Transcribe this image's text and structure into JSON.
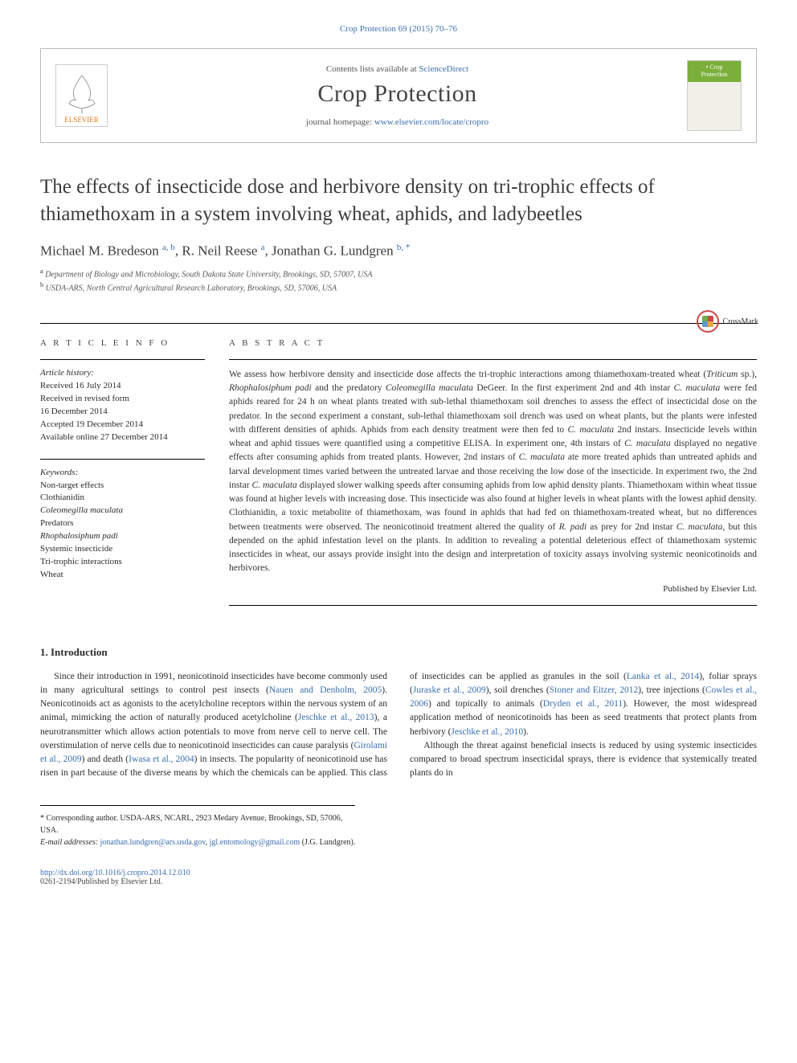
{
  "journal_ref": "Crop Protection 69 (2015) 70–76",
  "header": {
    "contents_prefix": "Contents lists available at ",
    "contents_link": "ScienceDirect",
    "journal_name": "Crop Protection",
    "homepage_prefix": "journal homepage: ",
    "homepage_link": "www.elsevier.com/locate/cropro",
    "publisher": "ELSEVIER",
    "cover_label": "Crop\nProtection"
  },
  "crossmark_label": "CrossMark",
  "title": "The effects of insecticide dose and herbivore density on tri-trophic effects of thiamethoxam in a system involving wheat, aphids, and ladybeetles",
  "authors_html": "Michael M. Bredeson <sup>a, b</sup>, R. Neil Reese <sup>a</sup>, Jonathan G. Lundgren <sup>b, *</sup>",
  "affiliations": [
    {
      "sup": "a",
      "text": "Department of Biology and Microbiology, South Dakota State University, Brookings, SD, 57007, USA"
    },
    {
      "sup": "b",
      "text": "USDA-ARS, North Central Agricultural Research Laboratory, Brookings, SD, 57006, USA"
    }
  ],
  "info": {
    "label": "A R T I C L E   I N F O",
    "history_heading": "Article history:",
    "history_lines": [
      "Received 16 July 2014",
      "Received in revised form",
      "16 December 2014",
      "Accepted 19 December 2014",
      "Available online 27 December 2014"
    ],
    "keywords_heading": "Keywords:",
    "keywords": [
      "Non-target effects",
      "Clothianidin",
      "Coleomegilla maculata",
      "Predators",
      "Rhophalosiphum padi",
      "Systemic insecticide",
      "Tri-trophic interactions",
      "Wheat"
    ],
    "keyword_italic_flags": [
      false,
      false,
      true,
      false,
      true,
      false,
      false,
      false
    ]
  },
  "abstract": {
    "label": "A B S T R A C T",
    "text": "We assess how herbivore density and insecticide dose affects the tri-trophic interactions among thiamethoxam-treated wheat (Triticum sp.), Rhophalosiphum padi and the predatory Coleomegilla maculata DeGeer. In the first experiment 2nd and 4th instar C. maculata were fed aphids reared for 24 h on wheat plants treated with sub-lethal thiamethoxam soil drenches to assess the effect of insecticidal dose on the predator. In the second experiment a constant, sub-lethal thiamethoxam soil drench was used on wheat plants, but the plants were infested with different densities of aphids. Aphids from each density treatment were then fed to C. maculata 2nd instars. Insecticide levels within wheat and aphid tissues were quantified using a competitive ELISA. In experiment one, 4th instars of C. maculata displayed no negative effects after consuming aphids from treated plants. However, 2nd instars of C. maculata ate more treated aphids than untreated aphids and larval development times varied between the untreated larvae and those receiving the low dose of the insecticide. In experiment two, the 2nd instar C. maculata displayed slower walking speeds after consuming aphids from low aphid density plants. Thiamethoxam within wheat tissue was found at higher levels with increasing dose. This insecticide was also found at higher levels in wheat plants with the lowest aphid density. Clothianidin, a toxic metabolite of thiamethoxam, was found in aphids that had fed on thiamethoxam-treated wheat, but no differences between treatments were observed. The neonicotinoid treatment altered the quality of R. padi as prey for 2nd instar C. maculata, but this depended on the aphid infestation level on the plants. In addition to revealing a potential deleterious effect of thiamethoxam systemic insecticides in wheat, our assays provide insight into the design and interpretation of toxicity assays involving systemic neonicotinoids and herbivores.",
    "publisher_line": "Published by Elsevier Ltd."
  },
  "intro": {
    "heading": "1. Introduction",
    "p1_a": "Since their introduction in 1991, neonicotinoid insecticides have become commonly used in many agricultural settings to control pest insects (",
    "p1_link1": "Nauen and Denholm, 2005",
    "p1_b": "). Neonicotinoids act as agonists to the acetylcholine receptors within the nervous system of an animal, mimicking the action of naturally produced acetylcholine (",
    "p1_link2": "Jeschke et al., 2013",
    "p1_c": "), a neurotransmitter which allows action potentials to move from nerve cell to nerve cell. The overstimulation of nerve cells due to neonicotinoid insecticides can cause paralysis (",
    "p1_link3": "Girolami et al., 2009",
    "p1_d": ") and death (",
    "p1_link4": "Iwasa et al., 2004",
    "p1_e": ") in insects. The popularity of neonicotinoid use has risen in part because of the diverse means by which the chemicals can be applied. This class of insecticides can be applied as granules in the soil (",
    "p1_link5": "Lanka et al., 2014",
    "p1_f": "), foliar sprays (",
    "p1_link6": "Juraske et al., 2009",
    "p1_g": "), soil drenches (",
    "p1_link7": "Stoner and Eitzer, 2012",
    "p1_h": "), tree injections (",
    "p1_link8": "Cowles et al., 2006",
    "p1_i": ") and topically to animals (",
    "p1_link9": "Dryden et al., 2011",
    "p1_j": "). However, the most widespread application method of neonicotinoids has been as seed treatments that protect plants from herbivory (",
    "p1_link10": "Jeschke et al., 2010",
    "p1_k": ").",
    "p2": "Although the threat against beneficial insects is reduced by using systemic insecticides compared to broad spectrum insecticidal sprays, there is evidence that systemically treated plants do in"
  },
  "footnote": {
    "corr_prefix": "* Corresponding author. USDA-ARS, NCARL, 2923 Medary Avenue, Brookings, SD, 57006, USA.",
    "email_label": "E-mail addresses:",
    "email1": "jonathan.lundgren@ars.usda.gov",
    "email_sep": ", ",
    "email2": "jgl.entomology@gmail.com",
    "email_suffix": " (J.G. Lundgren)."
  },
  "footer": {
    "doi_link": "http://dx.doi.org/10.1016/j.cropro.2014.12.010",
    "issn_line": "0261-2194/Published by Elsevier Ltd."
  },
  "colors": {
    "link": "#3a6fb0",
    "publisher_orange": "#e67817",
    "text": "#2b2b2b",
    "cover_green": "#7aaf3a"
  }
}
